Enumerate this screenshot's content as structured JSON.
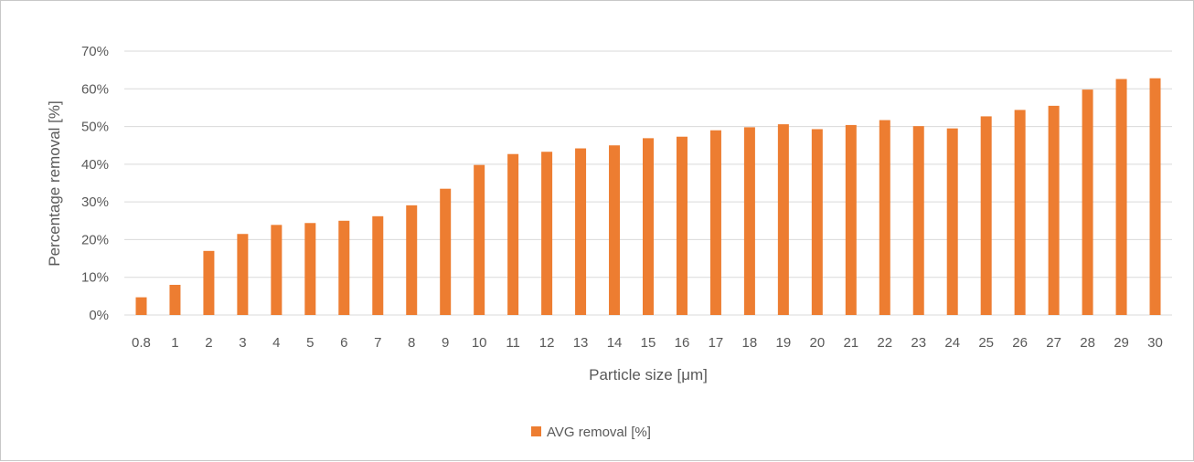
{
  "chart_data": {
    "type": "bar",
    "title": "",
    "xlabel": "Particle size [μm]",
    "ylabel": "Percentage removal [%]",
    "ylim": [
      0,
      70
    ],
    "ytick_step": 10,
    "ytick_suffix": "%",
    "grid": true,
    "legend_position": "bottom",
    "bar_color": "#ED7D31",
    "categories": [
      "0.8",
      "1",
      "2",
      "3",
      "4",
      "5",
      "6",
      "7",
      "8",
      "9",
      "10",
      "11",
      "12",
      "13",
      "14",
      "15",
      "16",
      "17",
      "18",
      "19",
      "20",
      "21",
      "22",
      "23",
      "24",
      "25",
      "26",
      "27",
      "28",
      "29",
      "30"
    ],
    "series": [
      {
        "name": "AVG removal [%]",
        "values": [
          4.7,
          8.0,
          17.0,
          21.5,
          23.9,
          24.4,
          25.0,
          26.2,
          29.1,
          33.5,
          39.8,
          42.7,
          43.3,
          44.2,
          45.0,
          46.9,
          47.3,
          49.0,
          49.8,
          50.6,
          49.3,
          50.4,
          51.7,
          50.1,
          49.5,
          52.7,
          54.4,
          55.5,
          59.8,
          62.6,
          62.8
        ]
      }
    ]
  }
}
